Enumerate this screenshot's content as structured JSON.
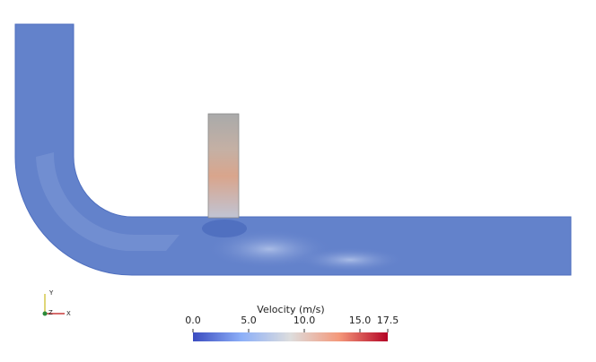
{
  "colorbar": {
    "title": "Velocity (m/s)",
    "range": [
      0,
      17.5
    ],
    "ticks": [
      {
        "value": 0,
        "label": "0.0"
      },
      {
        "value": 5,
        "label": "5.0"
      },
      {
        "value": 10,
        "label": "10.0"
      },
      {
        "value": 15,
        "label": "15.0"
      },
      {
        "value": 17.5,
        "label": "17.5"
      }
    ],
    "colors": [
      "#3b4cc0",
      "#8caff8",
      "#dddddd",
      "#f4987a",
      "#b40426"
    ]
  },
  "axes": {
    "y": "Y",
    "z": "Z",
    "x": "X"
  }
}
